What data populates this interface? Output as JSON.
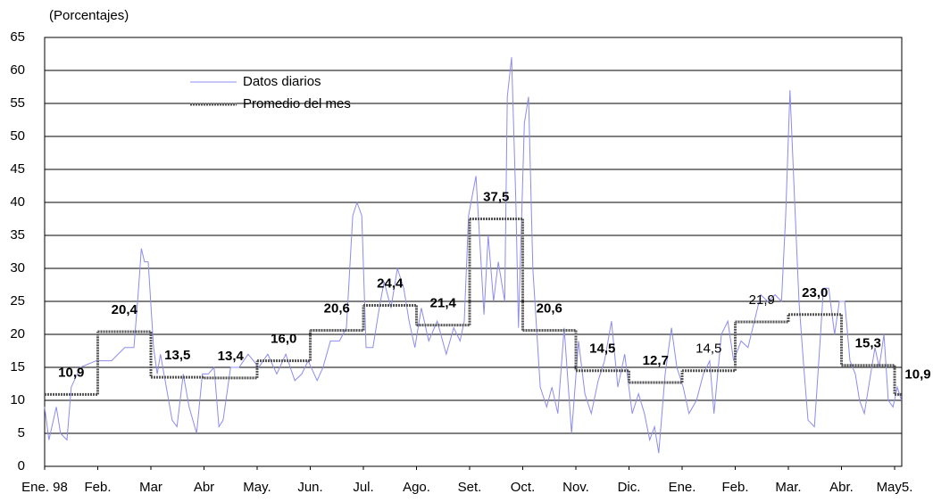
{
  "chart_data": {
    "type": "line",
    "y_label": "(Porcentajes)",
    "xlim": [
      0,
      16.13
    ],
    "ylim": [
      0,
      65
    ],
    "yticks": [
      0,
      5,
      10,
      15,
      20,
      25,
      30,
      35,
      40,
      45,
      50,
      55,
      60,
      65
    ],
    "xticks": [
      {
        "value": 0,
        "label": "Ene. 98"
      },
      {
        "value": 1,
        "label": "Feb."
      },
      {
        "value": 2,
        "label": "Mar"
      },
      {
        "value": 3,
        "label": "Abr"
      },
      {
        "value": 4,
        "label": "May."
      },
      {
        "value": 5,
        "label": "Jun."
      },
      {
        "value": 6,
        "label": "Jul."
      },
      {
        "value": 7,
        "label": "Ago."
      },
      {
        "value": 8,
        "label": "Set."
      },
      {
        "value": 9,
        "label": "Oct."
      },
      {
        "value": 10,
        "label": "Nov."
      },
      {
        "value": 11,
        "label": "Dic."
      },
      {
        "value": 12,
        "label": "Ene."
      },
      {
        "value": 13,
        "label": "Feb."
      },
      {
        "value": 14,
        "label": "Mar."
      },
      {
        "value": 15,
        "label": "Abr."
      },
      {
        "value": 16,
        "label": "May5."
      }
    ],
    "grid": true,
    "series": [
      {
        "name": "Datos diarios",
        "color": "#8c8cf0",
        "style": "line",
        "x": [
          0,
          0.08,
          0.22,
          0.3,
          0.42,
          0.5,
          0.67,
          0.97,
          1.26,
          1.51,
          1.68,
          1.76,
          1.82,
          1.88,
          1.95,
          2.05,
          2.12,
          2.18,
          2.29,
          2.4,
          2.49,
          2.61,
          2.72,
          2.86,
          2.97,
          3.08,
          3.19,
          3.28,
          3.36,
          3.5,
          3.66,
          3.83,
          4.03,
          4.2,
          4.37,
          4.54,
          4.71,
          4.84,
          4.96,
          5.13,
          5.24,
          5.38,
          5.55,
          5.68,
          5.8,
          5.88,
          5.97,
          6.05,
          6.18,
          6.3,
          6.39,
          6.52,
          6.64,
          6.76,
          6.86,
          6.97,
          7.09,
          7.23,
          7.39,
          7.56,
          7.7,
          7.82,
          7.9,
          7.98,
          8.12,
          8.2,
          8.27,
          8.35,
          8.45,
          8.54,
          8.66,
          8.71,
          8.79,
          8.87,
          8.92,
          9.03,
          9.11,
          9.19,
          9.33,
          9.45,
          9.55,
          9.66,
          9.78,
          9.92,
          10.05,
          10.17,
          10.29,
          10.42,
          10.54,
          10.67,
          10.79,
          10.92,
          11.06,
          11.18,
          11.29,
          11.39,
          11.48,
          11.56,
          11.68,
          11.8,
          11.9,
          12.02,
          12.13,
          12.27,
          12.4,
          12.52,
          12.6,
          12.74,
          12.86,
          12.97,
          13.11,
          13.24,
          13.36,
          13.48,
          13.61,
          13.75,
          13.87,
          13.95,
          14.03,
          14.12,
          14.2,
          14.29,
          14.37,
          14.49,
          14.59,
          14.66,
          14.76,
          14.87,
          14.96,
          15.06,
          15.16,
          15.26,
          15.34,
          15.43,
          15.55,
          15.63,
          15.71,
          15.8,
          15.88,
          15.97,
          16.05,
          16.13
        ],
        "values": [
          9,
          4,
          9,
          5,
          4,
          12,
          15,
          16,
          16,
          18,
          18,
          26,
          33,
          31,
          31,
          18,
          14,
          17,
          12,
          7,
          6,
          14,
          9,
          5,
          14,
          14,
          15,
          6,
          7,
          15,
          15,
          17,
          15,
          17,
          14,
          17,
          13,
          14,
          16,
          13,
          15,
          19,
          19,
          21,
          38,
          40,
          38,
          18,
          18,
          24,
          28,
          24,
          30,
          27,
          22,
          18,
          24,
          19,
          22,
          17,
          21,
          19,
          22,
          38,
          44,
          33,
          23,
          35,
          25,
          31,
          25,
          56,
          62,
          40,
          21,
          52,
          56,
          30,
          12,
          9,
          12,
          8,
          21,
          5,
          19,
          11,
          8,
          13,
          16,
          22,
          12,
          17,
          8,
          11,
          8,
          4,
          6,
          2,
          14,
          21,
          15,
          12,
          8,
          10,
          14,
          16,
          8,
          20,
          22,
          16,
          19,
          18,
          22,
          26,
          25,
          26,
          25,
          38,
          57,
          40,
          25,
          15,
          7,
          6,
          18,
          27,
          27,
          20,
          25,
          25,
          16,
          14,
          10,
          8,
          14,
          18,
          15,
          20,
          10,
          9,
          12,
          10
        ]
      },
      {
        "name": "Promedio del mes",
        "color": "#555555",
        "style": "step",
        "x": [
          0,
          1,
          2,
          3,
          4,
          5,
          6,
          7,
          8,
          9,
          10,
          11,
          12,
          13,
          14,
          15,
          16
        ],
        "values": [
          10.9,
          20.4,
          13.5,
          13.4,
          16.0,
          20.6,
          24.4,
          21.4,
          37.5,
          20.6,
          14.5,
          12.7,
          14.5,
          21.9,
          23.0,
          15.3,
          10.9
        ],
        "value_labels": [
          "10,9",
          "20,4",
          "13,5",
          "13,4",
          "16,0",
          "20,6",
          "24,4",
          "21,4",
          "37,5",
          "20,6",
          "14,5",
          "12,7",
          "14,5",
          "21,9",
          "23,0",
          "15,3",
          "10,9"
        ]
      }
    ]
  }
}
